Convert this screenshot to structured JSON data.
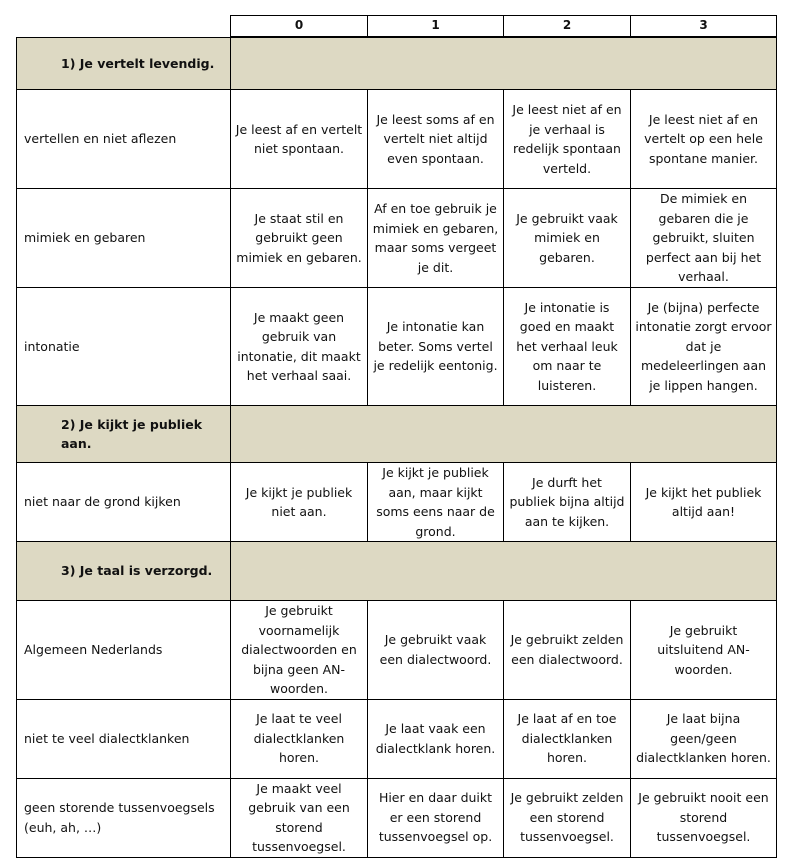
{
  "levels": [
    "0",
    "1",
    "2",
    "3"
  ],
  "sections": [
    {
      "title": "1)   Je vertelt levendig.",
      "rows": [
        {
          "criterion": "vertellen en niet aflezen",
          "cells": [
            "Je leest af en vertelt niet spontaan.",
            "Je leest soms af en vertelt niet altijd even spontaan.",
            "Je leest niet af en je verhaal is redelijk spontaan verteld.",
            "Je leest niet af en vertelt op een hele spontane manier."
          ]
        },
        {
          "criterion": "mimiek en gebaren",
          "cells": [
            "Je staat stil en gebruikt geen mimiek en gebaren.",
            "Af en toe gebruik je mimiek en gebaren, maar soms vergeet je dit.",
            "Je gebruikt vaak mimiek en gebaren.",
            "De mimiek en gebaren die je gebruikt, sluiten perfect aan bij het verhaal."
          ]
        },
        {
          "criterion": "intonatie",
          "cells": [
            "Je maakt geen gebruik van intonatie, dit maakt het verhaal saai.",
            "Je intonatie kan beter. Soms vertel je redelijk eentonig.",
            "Je intonatie is goed en maakt het verhaal leuk om naar te luisteren.",
            "Je (bijna) perfecte intonatie zorgt ervoor dat je medeleerlingen aan je lippen hangen."
          ]
        }
      ]
    },
    {
      "title": "2)   Je kijkt je publiek aan.",
      "rows": [
        {
          "criterion": "niet naar de grond kijken",
          "cells": [
            "Je kijkt je publiek niet aan.",
            "Je kijkt je publiek aan, maar kijkt soms eens naar de grond.",
            "Je durft het publiek bijna altijd aan te kijken.",
            "Je kijkt het publiek altijd aan!"
          ]
        }
      ]
    },
    {
      "title": "3)   Je taal is verzorgd.",
      "rows": [
        {
          "criterion": "Algemeen Nederlands",
          "cells": [
            "Je gebruikt voornamelijk dialectwoorden en bijna geen AN-woorden.",
            "Je gebruikt vaak een dialectwoord.",
            "Je gebruikt zelden een dialectwoord.",
            "Je gebruikt uitsluitend AN-woorden."
          ]
        },
        {
          "criterion": "niet te veel dialectklanken",
          "cells": [
            "Je laat te veel dialectklanken horen.",
            "Je laat vaak een dialectklank horen.",
            "Je laat af en toe dialectklanken horen.",
            "Je laat bijna geen/geen dialectklanken horen."
          ]
        },
        {
          "criterion": "geen storende tussenvoegsels (euh, ah, …)",
          "cells": [
            "Je maakt veel gebruik van een storend tussenvoegsel.",
            "Hier en daar duikt er een storend tussenvoegsel op.",
            "Je gebruikt zelden een storend tussenvoegsel.",
            "Je gebruikt nooit een storend tussenvoegsel."
          ]
        }
      ]
    }
  ],
  "colors": {
    "section_fill": "#ddd9c3",
    "border": "#000000"
  }
}
